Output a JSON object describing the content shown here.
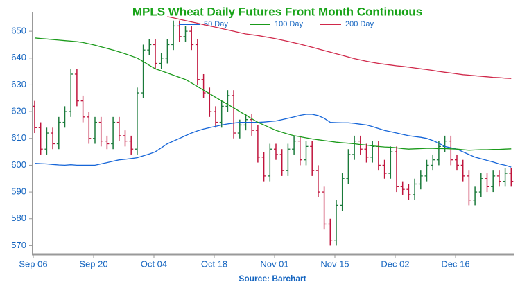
{
  "chart_data": {
    "type": "ohlc",
    "title": "MPLS Wheat Daily Futures Front Month Continuous",
    "source": "Source: Barchart",
    "categories": [
      "Sep 06",
      null,
      null,
      null,
      null,
      null,
      null,
      null,
      null,
      null,
      "Sep 20",
      null,
      null,
      null,
      null,
      null,
      null,
      null,
      null,
      null,
      "Oct 04",
      null,
      null,
      null,
      null,
      null,
      null,
      null,
      null,
      null,
      "Oct 18",
      null,
      null,
      null,
      null,
      null,
      null,
      null,
      null,
      null,
      "Nov 01",
      null,
      null,
      null,
      null,
      null,
      null,
      null,
      null,
      null,
      "Nov 15",
      null,
      null,
      null,
      null,
      null,
      null,
      null,
      null,
      null,
      "Dec 02",
      null,
      null,
      null,
      null,
      null,
      null,
      null,
      null,
      null,
      "Dec 16",
      null,
      null,
      null,
      null,
      null,
      null,
      null,
      null,
      null
    ],
    "ohlc": {
      "up_color": "#1a7a3a",
      "down_color": "#c0143c",
      "open": [
        622,
        614,
        606,
        612,
        608,
        616,
        620,
        634,
        624,
        618,
        610,
        616,
        609,
        608,
        616,
        611,
        609,
        606,
        627,
        643,
        645,
        638,
        640,
        645,
        652,
        648,
        650,
        645,
        632,
        627,
        620,
        616,
        622,
        626,
        612,
        615,
        617,
        613,
        603,
        596,
        606,
        604,
        598,
        606,
        609,
        602,
        607,
        598,
        590,
        578,
        572,
        585,
        595,
        604,
        609,
        606,
        603,
        607,
        600,
        597,
        605,
        592,
        591,
        589,
        593,
        596,
        600,
        602,
        607,
        609,
        602,
        600,
        596,
        587,
        590,
        595,
        592,
        596,
        594,
        597
      ],
      "high": [
        624,
        616,
        614,
        614,
        618,
        622,
        636,
        636,
        626,
        620,
        618,
        618,
        611,
        618,
        618,
        613,
        611,
        629,
        645,
        647,
        647,
        642,
        647,
        654,
        654,
        652,
        652,
        647,
        634,
        629,
        622,
        624,
        628,
        628,
        617,
        619,
        619,
        615,
        605,
        608,
        608,
        606,
        608,
        611,
        611,
        609,
        609,
        600,
        592,
        580,
        587,
        597,
        606,
        611,
        611,
        608,
        609,
        609,
        602,
        607,
        607,
        594,
        593,
        595,
        598,
        602,
        604,
        609,
        611,
        611,
        604,
        602,
        598,
        592,
        597,
        597,
        598,
        598,
        599,
        599
      ],
      "low": [
        612,
        604,
        604,
        606,
        606,
        614,
        618,
        622,
        616,
        608,
        608,
        607,
        606,
        606,
        609,
        607,
        604,
        604,
        625,
        641,
        636,
        636,
        638,
        643,
        646,
        646,
        643,
        630,
        625,
        618,
        614,
        614,
        620,
        610,
        610,
        613,
        611,
        601,
        594,
        594,
        602,
        596,
        596,
        604,
        600,
        600,
        596,
        588,
        576,
        570,
        570,
        583,
        593,
        602,
        604,
        601,
        601,
        598,
        595,
        595,
        590,
        589,
        587,
        587,
        591,
        594,
        598,
        600,
        605,
        600,
        598,
        594,
        585,
        585,
        588,
        590,
        590,
        592,
        592,
        592
      ],
      "close": [
        614,
        606,
        612,
        608,
        616,
        620,
        634,
        624,
        618,
        610,
        616,
        609,
        608,
        616,
        611,
        609,
        606,
        627,
        643,
        645,
        638,
        640,
        645,
        652,
        648,
        650,
        645,
        632,
        627,
        620,
        616,
        622,
        626,
        612,
        615,
        617,
        613,
        603,
        596,
        606,
        604,
        598,
        606,
        609,
        602,
        607,
        598,
        590,
        578,
        572,
        585,
        595,
        604,
        609,
        606,
        603,
        607,
        600,
        597,
        605,
        592,
        591,
        589,
        593,
        596,
        600,
        602,
        607,
        609,
        602,
        600,
        596,
        587,
        590,
        595,
        592,
        596,
        594,
        597,
        594
      ]
    },
    "series": [
      {
        "name": "50 Day",
        "color": "#1565d8",
        "values": [
          600.7,
          600.6,
          600.5,
          600.3,
          600.1,
          600,
          600.2,
          600,
          600,
          600,
          600,
          600.5,
          601,
          601.5,
          602,
          602.2,
          602.5,
          602.8,
          603.5,
          604.2,
          605,
          606.5,
          608,
          609,
          610,
          611,
          612,
          612.8,
          613.5,
          614,
          614.5,
          615,
          615.4,
          615.7,
          616,
          616,
          616,
          616,
          616.1,
          616.3,
          616.5,
          617,
          617.5,
          618,
          618.6,
          619,
          619,
          618.5,
          617.5,
          616,
          615.9,
          615.8,
          615.8,
          615.6,
          615.3,
          615,
          614.4,
          613.7,
          613,
          612.5,
          612,
          611.5,
          611,
          610.7,
          610.4,
          610,
          609.2,
          608.2,
          607,
          606.5,
          606,
          605,
          604,
          603,
          602.4,
          601.8,
          601.2,
          600.5,
          600,
          599.3
        ]
      },
      {
        "name": "100 Day",
        "color": "#1a9a1a",
        "values": [
          647.5,
          647.3,
          647.1,
          646.9,
          646.7,
          646.5,
          646.3,
          646.1,
          645.8,
          645.3,
          644.8,
          644.2,
          643.6,
          643,
          642.3,
          641.6,
          640.8,
          640,
          638.7,
          637.3,
          636,
          635.2,
          634.4,
          633.6,
          632.8,
          632,
          630.7,
          629.4,
          628,
          626.7,
          625.3,
          624,
          622.7,
          621.4,
          620,
          618.7,
          617.3,
          616,
          615,
          614,
          613,
          612.3,
          611.6,
          611,
          610.6,
          610.2,
          609.8,
          609.5,
          609.2,
          608.9,
          608.6,
          608.4,
          608.2,
          608,
          607.7,
          607.5,
          607.2,
          607,
          606.8,
          606.7,
          606.5,
          606.2,
          606,
          606.1,
          606.2,
          606.3,
          606.3,
          606.2,
          606.2,
          606.1,
          606,
          605.8,
          605.6,
          605.7,
          605.8,
          605.8,
          605.9,
          605.9,
          606,
          606.1
        ]
      },
      {
        "name": "200 Day",
        "color": "#d0284a",
        "values": [
          null,
          null,
          null,
          null,
          null,
          null,
          null,
          null,
          null,
          null,
          null,
          null,
          null,
          null,
          null,
          null,
          null,
          null,
          null,
          null,
          null,
          null,
          655.5,
          655,
          654.5,
          654,
          653.5,
          653,
          652.5,
          652,
          651.5,
          651,
          650.5,
          650,
          649.5,
          649,
          648.7,
          648.4,
          648,
          647.6,
          647.2,
          646.7,
          646.2,
          645.7,
          645.2,
          644.6,
          644,
          643.4,
          642.8,
          642.2,
          641.6,
          641,
          640.4,
          639.8,
          639.3,
          638.8,
          638.4,
          638,
          637.7,
          637.4,
          637.1,
          636.9,
          636.6,
          636.3,
          636,
          635.7,
          635.4,
          635,
          634.7,
          634.4,
          634.1,
          633.8,
          633.6,
          633.4,
          633.2,
          633,
          632.8,
          632.7,
          632.5,
          632.4
        ]
      }
    ],
    "ylim": [
      567,
      656.5
    ],
    "yticks": [
      570,
      580,
      590,
      600,
      610,
      620,
      630,
      640,
      650
    ]
  }
}
